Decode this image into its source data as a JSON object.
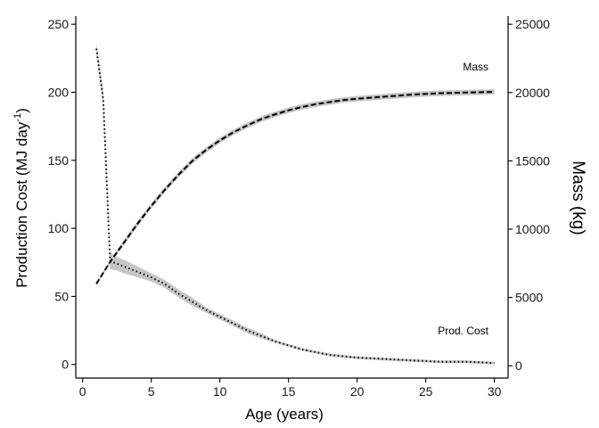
{
  "chart_data": {
    "type": "line",
    "xlabel": "Age (years)",
    "ylabel": {
      "main": "Production Cost (MJ day",
      "superscript": "-1",
      "close": ")"
    },
    "y2label": "Mass (kg)",
    "xlim": [
      -0.5,
      31
    ],
    "ylim": [
      -10,
      256
    ],
    "y2lim": [
      -900,
      25600
    ],
    "x_ticks": [
      0,
      5,
      10,
      15,
      20,
      25,
      30
    ],
    "y_ticks": [
      0,
      50,
      100,
      150,
      200,
      250
    ],
    "y2_ticks": [
      0,
      5000,
      10000,
      15000,
      20000,
      25000
    ],
    "grid": false,
    "series": [
      {
        "name": "Prod. Cost",
        "axis": "left",
        "style": "dotted",
        "x": [
          1,
          1.5,
          2,
          2.5,
          3,
          4,
          5,
          6,
          7,
          8,
          9,
          10,
          11,
          12,
          13,
          14,
          15,
          16,
          17,
          18,
          19,
          20,
          22,
          24,
          26,
          28,
          30
        ],
        "y": [
          232,
          195,
          76,
          74,
          72,
          68,
          64,
          59,
          52,
          46,
          40,
          35,
          30,
          25,
          21,
          17,
          14,
          11,
          9,
          7,
          6,
          5,
          4,
          3,
          2,
          2,
          1
        ],
        "band": [
          4,
          6,
          6,
          5,
          5,
          4,
          3,
          3,
          3,
          3,
          2,
          2,
          2,
          2,
          2,
          1,
          1,
          1,
          1,
          1,
          1,
          1,
          1,
          1,
          1,
          1,
          1
        ]
      },
      {
        "name": "Mass",
        "axis": "right",
        "style": "dashed",
        "x": [
          1,
          2,
          3,
          4,
          5,
          6,
          7,
          8,
          9,
          10,
          11,
          12,
          13,
          14,
          15,
          16,
          17,
          18,
          19,
          20,
          22,
          24,
          26,
          28,
          30
        ],
        "y": [
          6000,
          7600,
          9000,
          10400,
          11700,
          12900,
          14000,
          15000,
          15800,
          16500,
          17100,
          17600,
          18050,
          18400,
          18700,
          18950,
          19150,
          19300,
          19450,
          19550,
          19700,
          19850,
          19950,
          20000,
          20050
        ],
        "band": [
          100,
          150,
          180,
          200,
          200,
          200,
          200,
          200,
          200,
          200,
          200,
          200,
          200,
          200,
          200,
          200,
          200,
          200,
          200,
          200,
          200,
          200,
          200,
          200,
          200
        ]
      }
    ],
    "annotations": [
      {
        "text": "Mass",
        "series": "Mass"
      },
      {
        "text": "Prod. Cost",
        "series": "Prod. Cost"
      }
    ],
    "colors": {
      "line": "#000000",
      "band": "#c6c6c6",
      "axis": "#000000"
    }
  }
}
